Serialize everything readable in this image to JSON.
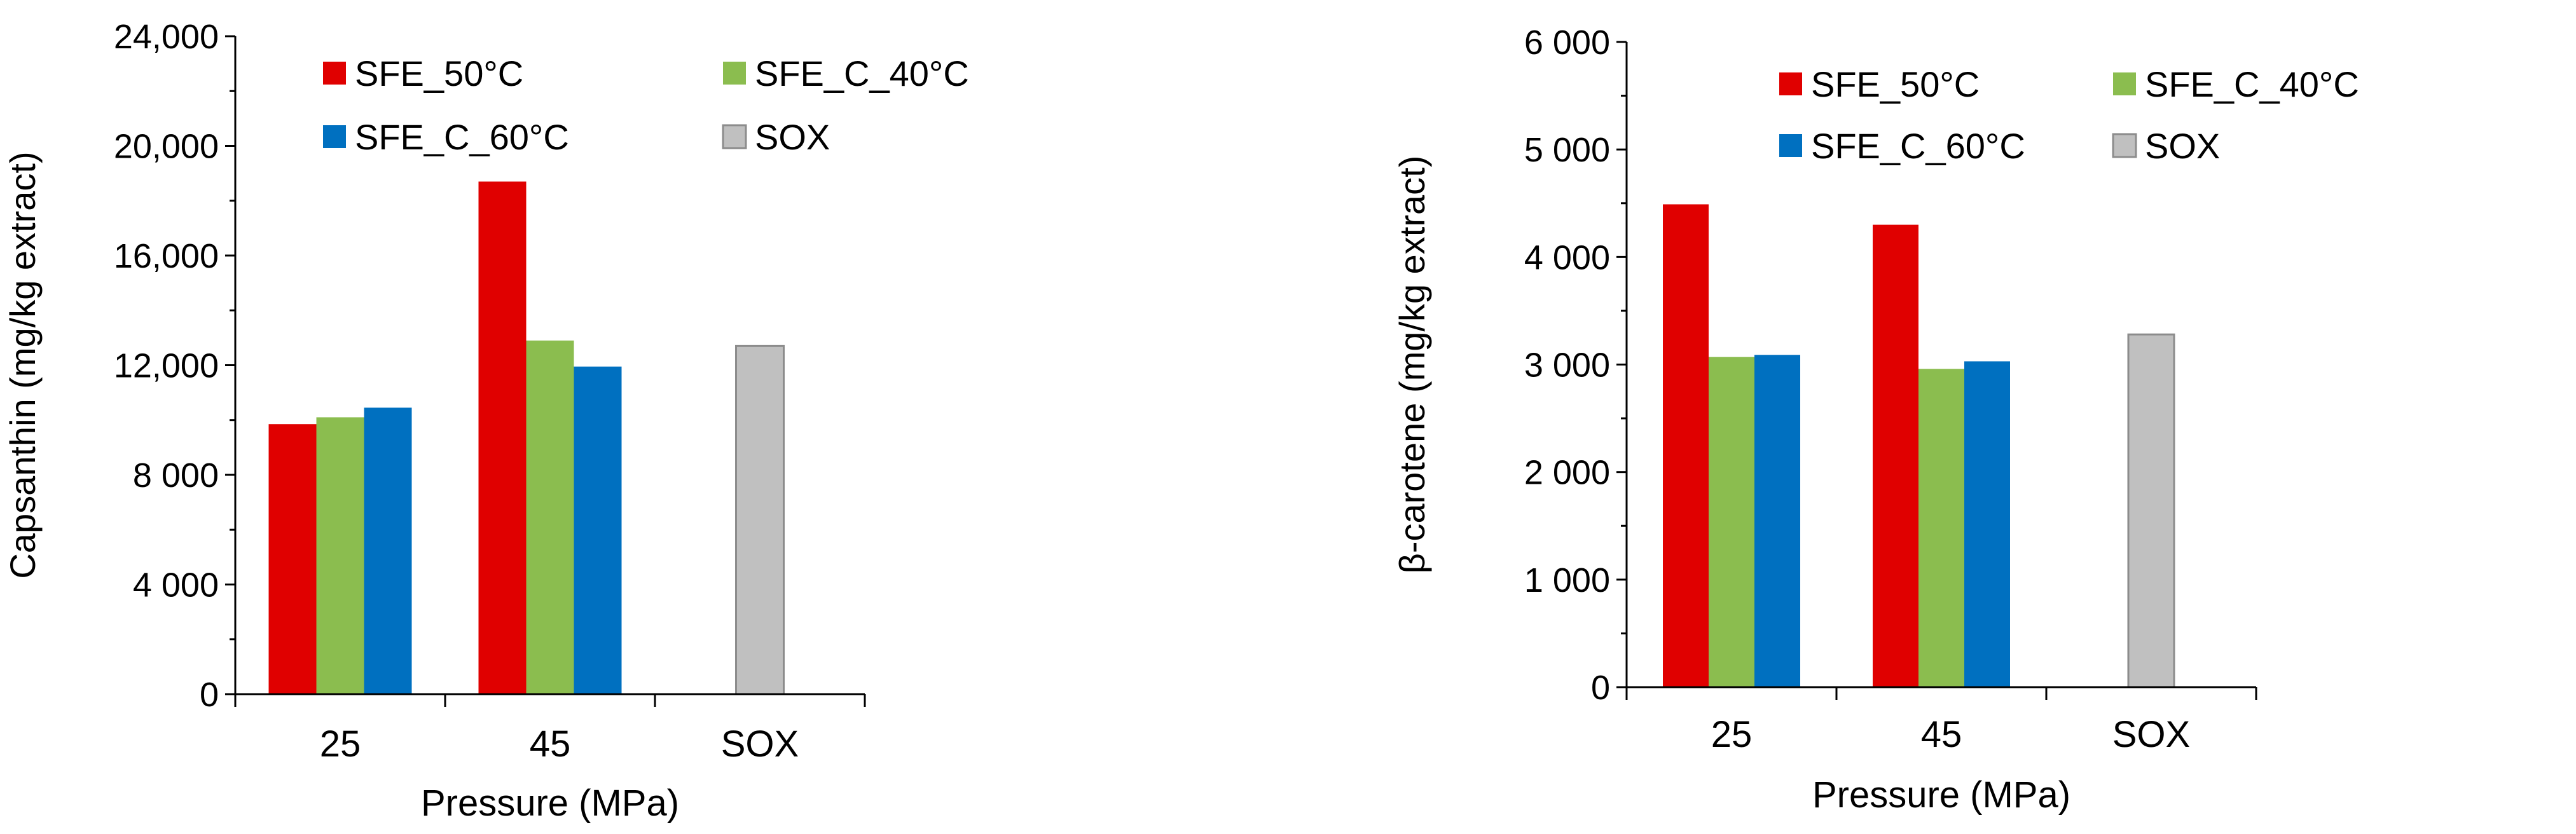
{
  "chart_data": [
    {
      "type": "bar",
      "title": "",
      "categories": [
        "25",
        "45",
        "SOX"
      ],
      "xlabel": "Pressure (MPa)",
      "ylabel": "Capsanthin (mg/kg extract)",
      "ylim": [
        0,
        24000
      ],
      "yticks": [
        0,
        4000,
        8000,
        12000,
        16000,
        20000,
        24000
      ],
      "ytick_labels": [
        "0",
        "4 000",
        "8 000",
        "12,000",
        "16,000",
        "20,000",
        "24,000"
      ],
      "grid": false,
      "legend_position": "top-left",
      "series": [
        {
          "name": "SFE_50°C",
          "color": "#e00000",
          "values": [
            9850,
            18700,
            null
          ]
        },
        {
          "name": "SFE_C_40°C",
          "color": "#8bbd4f",
          "values": [
            10100,
            12900,
            null
          ]
        },
        {
          "name": "SFE_C_60°C",
          "color": "#0070c0",
          "values": [
            10450,
            11950,
            null
          ]
        },
        {
          "name": "SOX",
          "color": "#c0c0c0",
          "values": [
            null,
            null,
            12700
          ]
        }
      ]
    },
    {
      "type": "bar",
      "title": "",
      "categories": [
        "25",
        "45",
        "SOX"
      ],
      "xlabel": "Pressure (MPa)",
      "ylabel": "β-carotene (mg/kg extract)",
      "ylim": [
        0,
        6000
      ],
      "yticks": [
        0,
        1000,
        2000,
        3000,
        4000,
        5000,
        6000
      ],
      "ytick_labels": [
        "0",
        "1 000",
        "2 000",
        "3 000",
        "4 000",
        "5 000",
        "6 000"
      ],
      "grid": false,
      "legend_position": "top-left",
      "series": [
        {
          "name": "SFE_50°C",
          "color": "#e00000",
          "values": [
            4490,
            4300,
            null
          ]
        },
        {
          "name": "SFE_C_40°C",
          "color": "#8bbd4f",
          "values": [
            3070,
            2960,
            null
          ]
        },
        {
          "name": "SFE_C_60°C",
          "color": "#0070c0",
          "values": [
            3090,
            3030,
            null
          ]
        },
        {
          "name": "SOX",
          "color": "#c0c0c0",
          "values": [
            null,
            null,
            3280
          ]
        }
      ]
    }
  ]
}
